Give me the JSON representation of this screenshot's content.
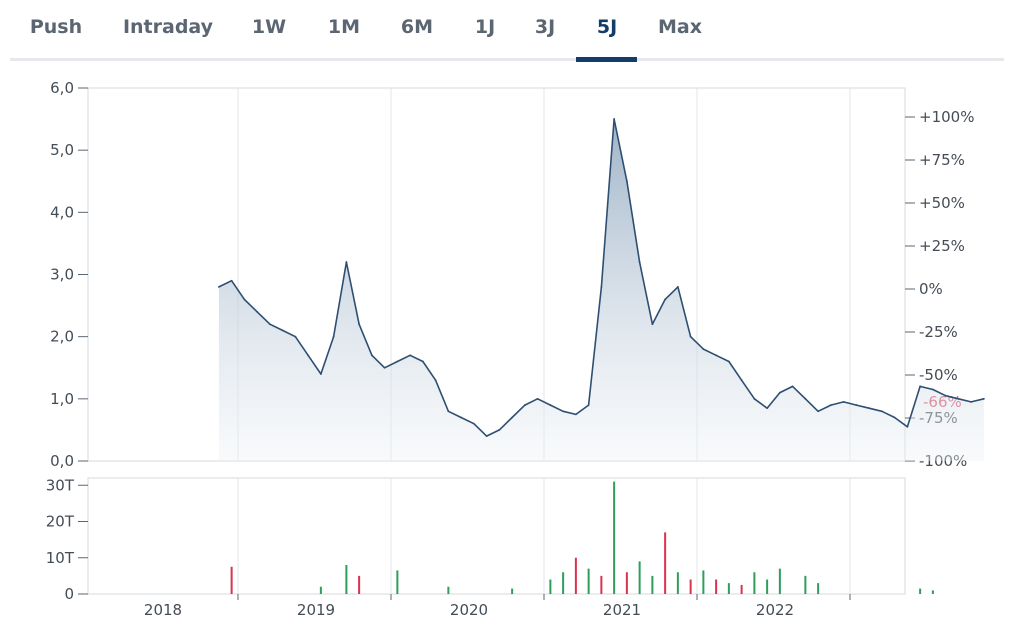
{
  "tabs": [
    {
      "label": "Push",
      "active": false
    },
    {
      "label": "Intraday",
      "active": false
    },
    {
      "label": "1W",
      "active": false
    },
    {
      "label": "1M",
      "active": false
    },
    {
      "label": "6M",
      "active": false
    },
    {
      "label": "1J",
      "active": false
    },
    {
      "label": "3J",
      "active": false
    },
    {
      "label": "5J",
      "active": true
    },
    {
      "label": "Max",
      "active": false
    }
  ],
  "colors": {
    "accent": "#123d6a",
    "line": "#2e4f72",
    "volume_up": "#2e9e5b",
    "volume_down": "#d9334e",
    "current_pct": "#e0435c"
  },
  "chart_data": [
    {
      "type": "area",
      "title": "",
      "x_ticks": [
        "2018",
        "2019",
        "2020",
        "2021",
        "2022"
      ],
      "y_ticks": [
        "0,0",
        "1,0",
        "2,0",
        "3,0",
        "4,0",
        "5,0",
        "6,0"
      ],
      "ylim": [
        0,
        6
      ],
      "right_axis_ticks": [
        "+100%",
        "+75%",
        "+50%",
        "+25%",
        "0%",
        "-25%",
        "-50%",
        "-75%",
        "-100%"
      ],
      "current_change_label": "-66%",
      "grid": "vertical",
      "series": [
        {
          "x": [
            "2017-11",
            "2017-12",
            "2018-01",
            "2018-02",
            "2018-03",
            "2018-04",
            "2018-05",
            "2018-06",
            "2018-07",
            "2018-08",
            "2018-09",
            "2018-10",
            "2018-11",
            "2018-12",
            "2019-01",
            "2019-02",
            "2019-03",
            "2019-04",
            "2019-05",
            "2019-06",
            "2019-07",
            "2019-08",
            "2019-09",
            "2019-10",
            "2019-11",
            "2019-12",
            "2020-01",
            "2020-02",
            "2020-03",
            "2020-04",
            "2020-05",
            "2020-06",
            "2020-07",
            "2020-08",
            "2020-09",
            "2020-10",
            "2020-11",
            "2020-12",
            "2021-01",
            "2021-02",
            "2021-03",
            "2021-04",
            "2021-05",
            "2021-06",
            "2021-07",
            "2021-08",
            "2021-09",
            "2021-10",
            "2021-11",
            "2021-12",
            "2022-01",
            "2022-02",
            "2022-03",
            "2022-04",
            "2022-05",
            "2022-06",
            "2022-07",
            "2022-08",
            "2022-09",
            "2022-10",
            "2022-11"
          ],
          "values": [
            2.8,
            2.9,
            2.6,
            2.4,
            2.2,
            2.1,
            2.0,
            1.7,
            1.4,
            2.0,
            3.2,
            2.2,
            1.7,
            1.5,
            1.6,
            1.7,
            1.6,
            1.3,
            0.8,
            0.7,
            0.6,
            0.4,
            0.5,
            0.7,
            0.9,
            1.0,
            0.9,
            0.8,
            0.75,
            0.9,
            2.8,
            5.5,
            4.5,
            3.2,
            2.2,
            2.6,
            2.8,
            2.0,
            1.8,
            1.7,
            1.6,
            1.3,
            1.0,
            0.85,
            1.1,
            1.2,
            1.0,
            0.8,
            0.9,
            0.95,
            0.9,
            0.85,
            0.8,
            0.7,
            0.55,
            1.2,
            1.15,
            1.05,
            1.0,
            0.95,
            1.0
          ]
        }
      ]
    },
    {
      "type": "bar",
      "title": "",
      "y_ticks": [
        "0",
        "10T",
        "20T",
        "30T"
      ],
      "ylim": [
        0,
        32
      ],
      "unit": "T",
      "series": [
        {
          "x": [
            "2017-12",
            "2018-07",
            "2018-09",
            "2018-10",
            "2019-01",
            "2019-05",
            "2019-10",
            "2020-01",
            "2020-02",
            "2020-03",
            "2020-04",
            "2020-05",
            "2020-06",
            "2020-07",
            "2020-08",
            "2020-09",
            "2020-10",
            "2020-11",
            "2020-12",
            "2021-01",
            "2021-02",
            "2021-03",
            "2021-04",
            "2021-05",
            "2021-06",
            "2021-07",
            "2021-09",
            "2021-10",
            "2022-06",
            "2022-07"
          ],
          "values": [
            7.5,
            2,
            8,
            5,
            6.5,
            2,
            1.5,
            4,
            6,
            10,
            7,
            5,
            31,
            6,
            9,
            5,
            17,
            6,
            4,
            6.5,
            4,
            3,
            2.5,
            6,
            4,
            7,
            5,
            3,
            1.5,
            1
          ],
          "direction": [
            "down",
            "up",
            "up",
            "down",
            "up",
            "up",
            "up",
            "up",
            "up",
            "down",
            "up",
            "down",
            "up",
            "down",
            "up",
            "up",
            "down",
            "up",
            "down",
            "up",
            "down",
            "up",
            "down",
            "up",
            "up",
            "up",
            "up",
            "up",
            "up",
            "up"
          ]
        }
      ]
    }
  ]
}
